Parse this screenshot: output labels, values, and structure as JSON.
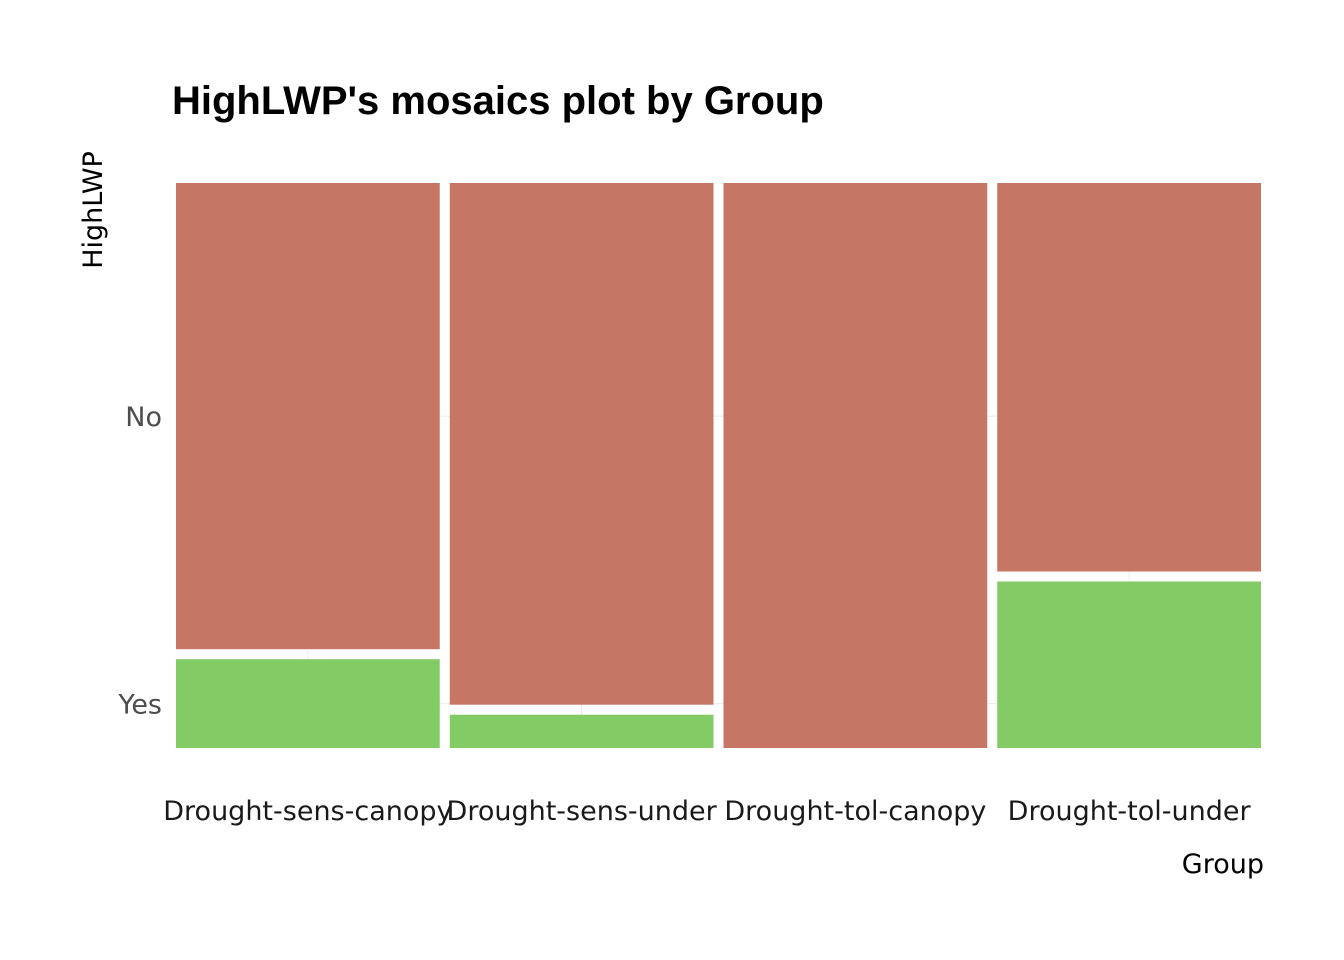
{
  "chart_data": {
    "type": "mosaic",
    "title": "HighLWP's mosaics plot by Group",
    "xlabel": "Group",
    "ylabel": "HighLWP",
    "categories": [
      "Drought-sens-canopy",
      "Drought-sens-under",
      "Drought-tol-canopy",
      "Drought-tol-under"
    ],
    "category_widths": [
      0.25,
      0.25,
      0.25,
      0.25
    ],
    "y_tick_labels": [
      "No",
      "Yes"
    ],
    "series": [
      {
        "name": "No",
        "color": "#C67664",
        "values": [
          0.84,
          0.94,
          1.0,
          0.7
        ]
      },
      {
        "name": "Yes",
        "color": "#82CB65",
        "values": [
          0.16,
          0.06,
          0.0,
          0.3
        ]
      }
    ],
    "grid": true,
    "legend": "none"
  }
}
